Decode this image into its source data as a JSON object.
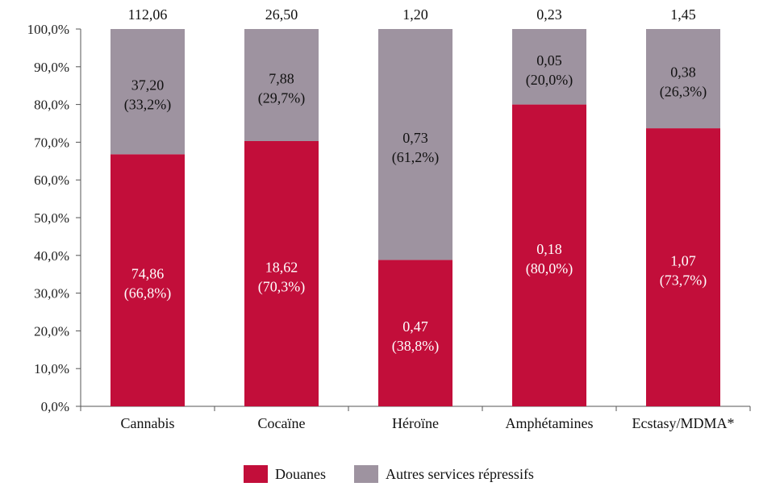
{
  "chart_data": {
    "type": "bar",
    "stacked": true,
    "categories": [
      "Cannabis",
      "Cocaïne",
      "Héroïne",
      "Amphétamines",
      "Ecstasy/MDMA*"
    ],
    "totals": [
      "112,06",
      "26,50",
      "1,20",
      "0,23",
      "1,45"
    ],
    "series": [
      {
        "name": "Douanes",
        "color": "#C20E3A",
        "label_color": "#ffffff",
        "percent": [
          66.8,
          70.3,
          38.8,
          80.0,
          73.7
        ],
        "value_labels": [
          "74,86",
          "18,62",
          "0,47",
          "0,18",
          "1,07"
        ],
        "percent_labels": [
          "(66,8%)",
          "(70,3%)",
          "(38,8%)",
          "(80,0%)",
          "(73,7%)"
        ]
      },
      {
        "name": "Autres services répressifs",
        "color": "#9E93A0",
        "label_color": "#111111",
        "percent": [
          33.2,
          29.7,
          61.2,
          20.0,
          26.3
        ],
        "value_labels": [
          "37,20",
          "7,88",
          "0,73",
          "0,05",
          "0,38"
        ],
        "percent_labels": [
          "(33,2%)",
          "(29,7%)",
          "(61,2%)",
          "(20,0%)",
          "(26,3%)"
        ]
      }
    ],
    "yticks": [
      "0,0%",
      "10,0%",
      "20,0%",
      "30,0%",
      "40,0%",
      "50,0%",
      "60,0%",
      "70,0%",
      "80,0%",
      "90,0%",
      "100,0%"
    ],
    "ylim": [
      0,
      100
    ],
    "grid": false,
    "legend_position": "bottom"
  }
}
